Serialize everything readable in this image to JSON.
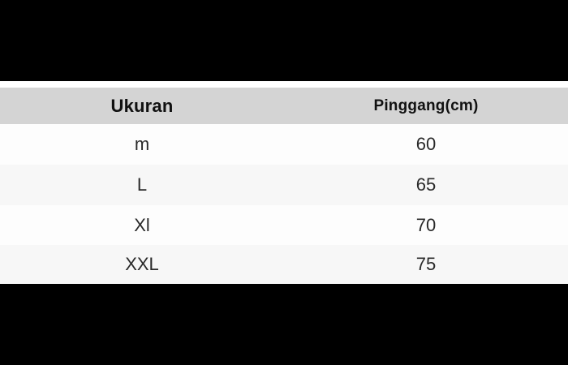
{
  "chart_data": {
    "type": "table",
    "columns": [
      "Ukuran",
      "Pinggang(cm)"
    ],
    "rows": [
      [
        "m",
        "60"
      ],
      [
        "L",
        "65"
      ],
      [
        "Xl",
        "70"
      ],
      [
        "XXL",
        "75"
      ]
    ],
    "legend": "none",
    "layout": "two equal centered columns, gray header row, zebra striping, black letterbox bars above and below"
  },
  "colors": {
    "letterbox": "#000000",
    "header_bg": "#d4d4d4",
    "row_bg": "#fdfdfd",
    "row_alt_bg": "#f7f7f7",
    "header_text": "#111111",
    "cell_text": "#2a2a2a",
    "page_bg": "#ffffff"
  }
}
